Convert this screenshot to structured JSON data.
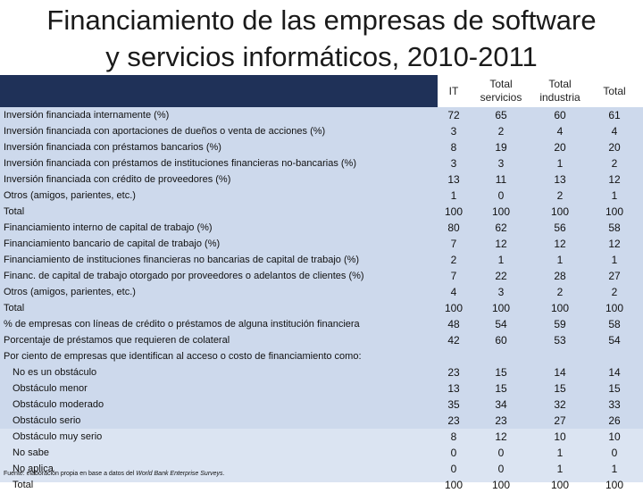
{
  "title": {
    "line1": "Financiamiento de las empresas de software",
    "line2": "y servicios informáticos, 2010-2011"
  },
  "table": {
    "headers": [
      "IT",
      "Total servicios",
      "Total industria",
      "Total"
    ],
    "rows": [
      {
        "label": "Inversión financiada internamente (%)",
        "values": [
          "72",
          "65",
          "60",
          "61"
        ]
      },
      {
        "label": "Inversión financiada con aportaciones de dueños o venta de acciones (%)",
        "values": [
          "3",
          "2",
          "4",
          "4"
        ]
      },
      {
        "label": "Inversión financiada con préstamos bancarios (%)",
        "values": [
          "8",
          "19",
          "20",
          "20"
        ]
      },
      {
        "label": "Inversión financiada con préstamos de instituciones financieras no-bancarias (%)",
        "values": [
          "3",
          "3",
          "1",
          "2"
        ]
      },
      {
        "label": "Inversión financiada con crédito de proveedores (%)",
        "values": [
          "13",
          "11",
          "13",
          "12"
        ]
      },
      {
        "label": "Otros (amigos, parientes, etc.)",
        "values": [
          "1",
          "0",
          "2",
          "1"
        ]
      },
      {
        "label": "Total",
        "values": [
          "100",
          "100",
          "100",
          "100"
        ]
      },
      {
        "label": "Financiamiento interno de capital de trabajo (%)",
        "values": [
          "80",
          "62",
          "56",
          "58"
        ]
      },
      {
        "label": "Financiamiento bancario de capital de trabajo (%)",
        "values": [
          "7",
          "12",
          "12",
          "12"
        ]
      },
      {
        "label": "Financiamiento de instituciones financieras no bancarias de capital de trabajo (%)",
        "values": [
          "2",
          "1",
          "1",
          "1"
        ]
      },
      {
        "label": "Financ. de capital de trabajo otorgado por proveedores o adelantos de clientes (%)",
        "values": [
          "7",
          "22",
          "28",
          "27"
        ]
      },
      {
        "label": "Otros (amigos, parientes, etc.)",
        "values": [
          "4",
          "3",
          "2",
          "2"
        ]
      },
      {
        "label": "Total",
        "values": [
          "100",
          "100",
          "100",
          "100"
        ]
      },
      {
        "label": "% de empresas con líneas de crédito o préstamos de alguna institución financiera",
        "values": [
          "48",
          "54",
          "59",
          "58"
        ]
      },
      {
        "label": "Porcentaje de préstamos que requieren de colateral",
        "values": [
          "42",
          "60",
          "53",
          "54"
        ]
      },
      {
        "label": "Por ciento de empresas que identifican al acceso o costo de financiamiento como:",
        "values": [
          "",
          "",
          "",
          ""
        ]
      },
      {
        "label": "No es un obstáculo",
        "values": [
          "23",
          "15",
          "14",
          "14"
        ],
        "indent": true
      },
      {
        "label": "Obstáculo menor",
        "values": [
          "13",
          "15",
          "15",
          "15"
        ],
        "indent": true
      },
      {
        "label": "Obstáculo moderado",
        "values": [
          "35",
          "34",
          "32",
          "33"
        ],
        "indent": true
      },
      {
        "label": "Obstáculo serio",
        "values": [
          "23",
          "23",
          "27",
          "26"
        ],
        "indent": true
      },
      {
        "label": "Obstáculo muy serio",
        "values": [
          "8",
          "12",
          "10",
          "10"
        ],
        "indent": true
      },
      {
        "label": "No sabe",
        "values": [
          "0",
          "0",
          "1",
          "0"
        ],
        "indent": true
      },
      {
        "label": "No aplica",
        "values": [
          "0",
          "0",
          "1",
          "1"
        ],
        "indent": true
      },
      {
        "label": "Total",
        "values": [
          "100",
          "100",
          "100",
          "100"
        ],
        "indent": true
      }
    ]
  },
  "source": {
    "prefix": "Fuente: elaboración propia en base a datos del ",
    "emphasis": "World Bank Enterprise Surveys",
    "suffix": "."
  },
  "colors": {
    "header_band": "#1f3158",
    "row_band": "#cdd9ec",
    "text": "#111111"
  }
}
